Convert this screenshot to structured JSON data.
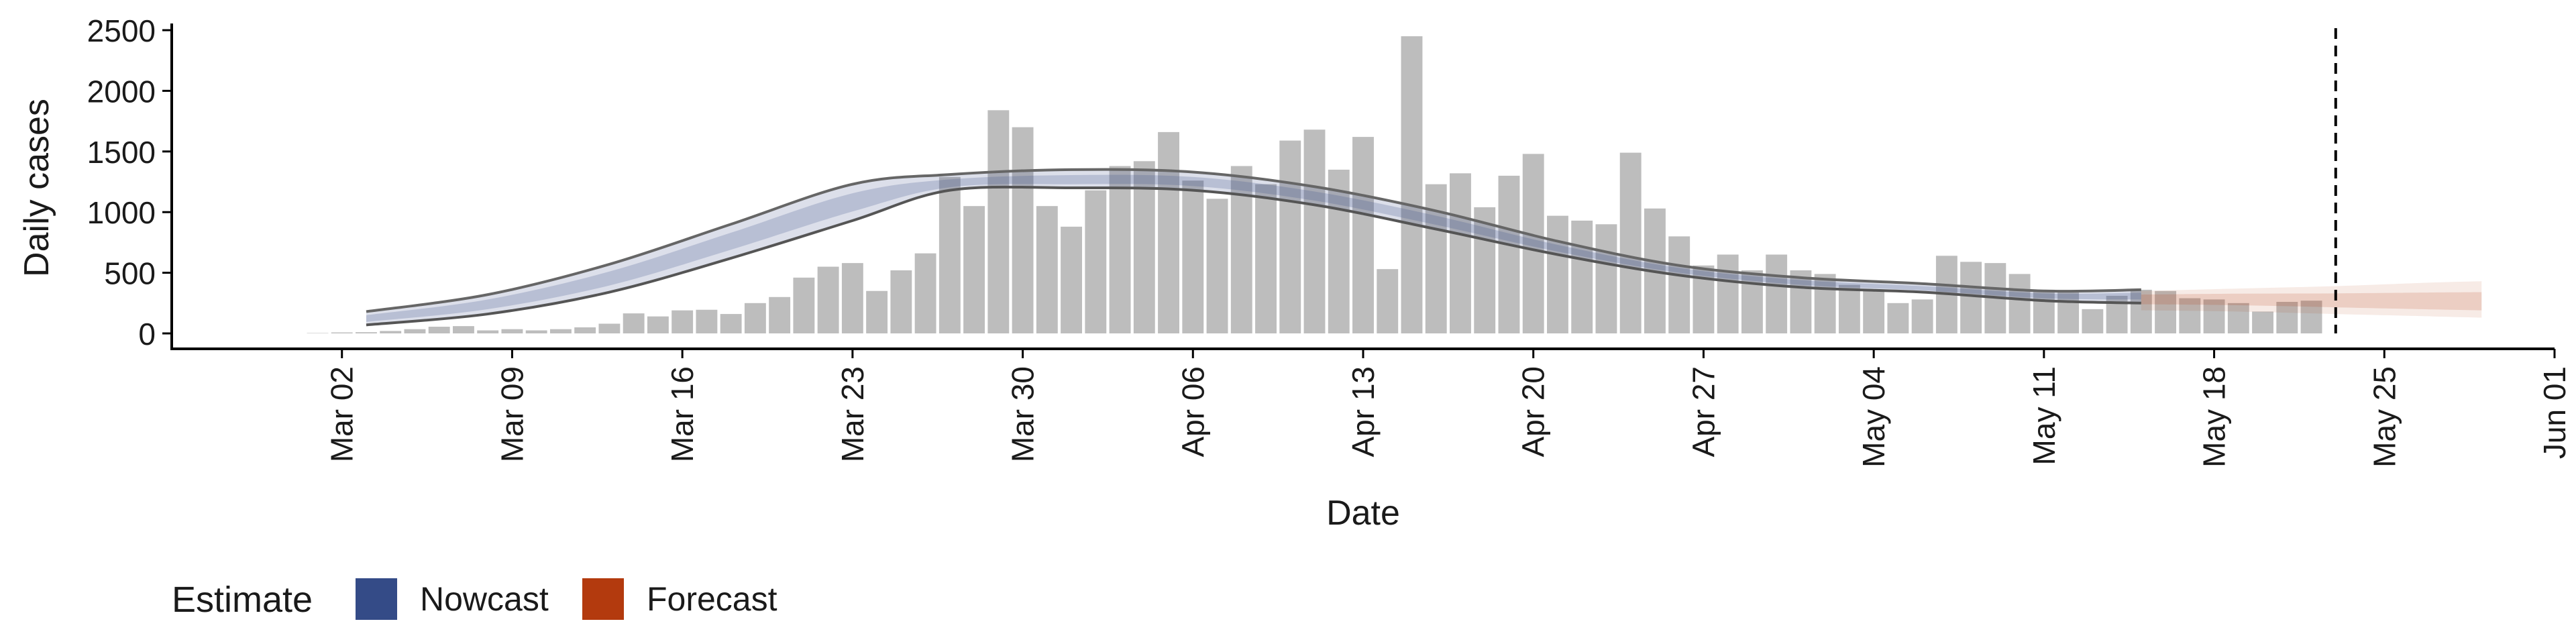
{
  "chart_data": {
    "type": "bar",
    "xlabel": "Date",
    "ylabel": "Daily cases",
    "ylim": [
      0,
      2500
    ],
    "yticks": [
      0,
      500,
      1000,
      1500,
      2000,
      2500
    ],
    "xlim": [
      "2020-02-24",
      "2020-06-01"
    ],
    "xticks": [
      {
        "date": "2020-03-02",
        "label": "Mar 02"
      },
      {
        "date": "2020-03-09",
        "label": "Mar 09"
      },
      {
        "date": "2020-03-16",
        "label": "Mar 16"
      },
      {
        "date": "2020-03-23",
        "label": "Mar 23"
      },
      {
        "date": "2020-03-30",
        "label": "Mar 30"
      },
      {
        "date": "2020-04-06",
        "label": "Apr 06"
      },
      {
        "date": "2020-04-13",
        "label": "Apr 13"
      },
      {
        "date": "2020-04-20",
        "label": "Apr 20"
      },
      {
        "date": "2020-04-27",
        "label": "Apr 27"
      },
      {
        "date": "2020-05-04",
        "label": "May 04"
      },
      {
        "date": "2020-05-11",
        "label": "May 11"
      },
      {
        "date": "2020-05-18",
        "label": "May 18"
      },
      {
        "date": "2020-05-25",
        "label": "May 25"
      },
      {
        "date": "2020-06-01",
        "label": "Jun 01"
      }
    ],
    "bars": {
      "start_date": "2020-03-01",
      "values": [
        3,
        8,
        10,
        20,
        35,
        55,
        60,
        25,
        35,
        25,
        35,
        50,
        80,
        165,
        140,
        190,
        195,
        160,
        250,
        300,
        460,
        550,
        580,
        350,
        520,
        660,
        1290,
        1050,
        1840,
        1700,
        1050,
        880,
        1180,
        1380,
        1420,
        1660,
        1260,
        1110,
        1380,
        1230,
        1590,
        1680,
        1350,
        1620,
        530,
        2450,
        1230,
        1320,
        1040,
        1300,
        1480,
        970,
        930,
        900,
        1490,
        1030,
        800,
        560,
        650,
        520,
        650,
        520,
        490,
        400,
        350,
        250,
        280,
        640,
        590,
        580,
        490,
        360,
        350,
        200,
        310,
        360,
        350,
        290,
        280,
        250,
        180,
        260,
        270
      ]
    },
    "nowcast": {
      "start_date": "2020-03-03",
      "end_date": "2020-05-15",
      "color": "#3b4f8a",
      "median": [
        {
          "date": "2020-03-03",
          "value": 120
        },
        {
          "date": "2020-03-08",
          "value": 240
        },
        {
          "date": "2020-03-13",
          "value": 450
        },
        {
          "date": "2020-03-18",
          "value": 760
        },
        {
          "date": "2020-03-23",
          "value": 1080
        },
        {
          "date": "2020-03-27",
          "value": 1230
        },
        {
          "date": "2020-04-01",
          "value": 1260
        },
        {
          "date": "2020-04-06",
          "value": 1250
        },
        {
          "date": "2020-04-11",
          "value": 1130
        },
        {
          "date": "2020-04-16",
          "value": 930
        },
        {
          "date": "2020-04-21",
          "value": 700
        },
        {
          "date": "2020-04-26",
          "value": 520
        },
        {
          "date": "2020-05-01",
          "value": 420
        },
        {
          "date": "2020-05-06",
          "value": 370
        },
        {
          "date": "2020-05-11",
          "value": 310
        },
        {
          "date": "2020-05-15",
          "value": 310
        }
      ],
      "upper": [
        {
          "date": "2020-03-03",
          "value": 180
        },
        {
          "date": "2020-03-08",
          "value": 320
        },
        {
          "date": "2020-03-13",
          "value": 570
        },
        {
          "date": "2020-03-18",
          "value": 900
        },
        {
          "date": "2020-03-23",
          "value": 1230
        },
        {
          "date": "2020-03-27",
          "value": 1310
        },
        {
          "date": "2020-04-01",
          "value": 1350
        },
        {
          "date": "2020-04-06",
          "value": 1330
        },
        {
          "date": "2020-04-11",
          "value": 1210
        },
        {
          "date": "2020-04-16",
          "value": 1010
        },
        {
          "date": "2020-04-21",
          "value": 760
        },
        {
          "date": "2020-04-26",
          "value": 560
        },
        {
          "date": "2020-05-01",
          "value": 460
        },
        {
          "date": "2020-05-06",
          "value": 410
        },
        {
          "date": "2020-05-11",
          "value": 350
        },
        {
          "date": "2020-05-15",
          "value": 360
        }
      ],
      "lower": [
        {
          "date": "2020-03-03",
          "value": 70
        },
        {
          "date": "2020-03-08",
          "value": 160
        },
        {
          "date": "2020-03-13",
          "value": 340
        },
        {
          "date": "2020-03-18",
          "value": 620
        },
        {
          "date": "2020-03-23",
          "value": 930
        },
        {
          "date": "2020-03-27",
          "value": 1180
        },
        {
          "date": "2020-04-01",
          "value": 1200
        },
        {
          "date": "2020-04-06",
          "value": 1180
        },
        {
          "date": "2020-04-11",
          "value": 1060
        },
        {
          "date": "2020-04-16",
          "value": 860
        },
        {
          "date": "2020-04-21",
          "value": 650
        },
        {
          "date": "2020-04-26",
          "value": 480
        },
        {
          "date": "2020-05-01",
          "value": 380
        },
        {
          "date": "2020-05-06",
          "value": 340
        },
        {
          "date": "2020-05-11",
          "value": 270
        },
        {
          "date": "2020-05-15",
          "value": 250
        }
      ]
    },
    "forecast": {
      "color": "#b33a0e",
      "points": [
        {
          "date": "2020-05-15",
          "median": 290,
          "lower": 190,
          "upper": 350
        },
        {
          "date": "2020-05-19",
          "median": 285,
          "lower": 180,
          "upper": 370
        },
        {
          "date": "2020-05-23",
          "median": 270,
          "lower": 160,
          "upper": 390
        },
        {
          "date": "2020-05-27",
          "median": 255,
          "lower": 140,
          "upper": 420
        },
        {
          "date": "2020-05-29",
          "median": 250,
          "lower": 130,
          "upper": 430
        }
      ]
    },
    "vline_date": "2020-05-23",
    "legend": {
      "title": "Estimate",
      "position": "bottom-left",
      "items": [
        {
          "label": "Nowcast",
          "color": "#344b87"
        },
        {
          "label": "Forecast",
          "color": "#b33a0e"
        }
      ]
    }
  }
}
